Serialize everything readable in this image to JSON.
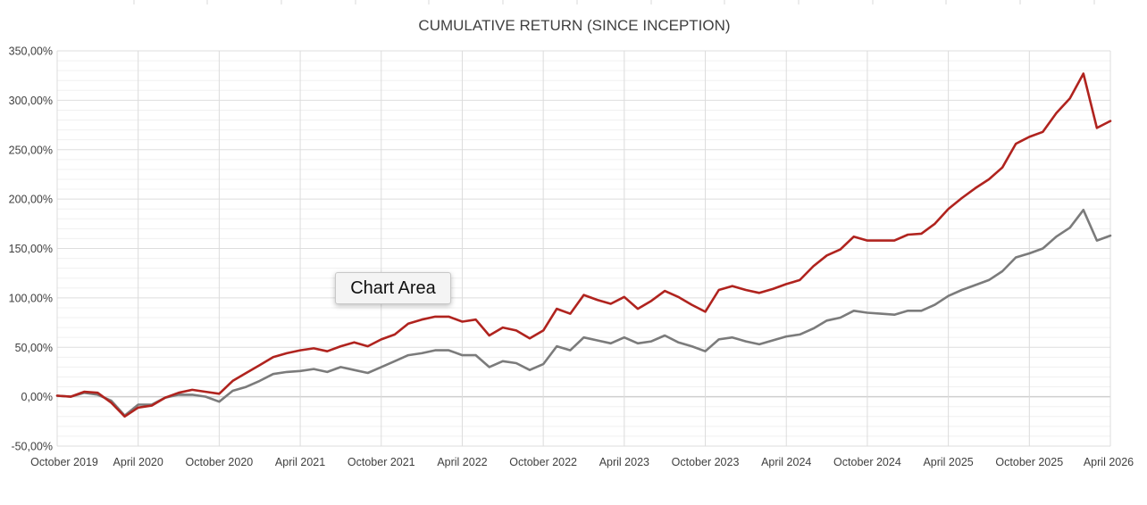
{
  "chart_data": {
    "type": "line",
    "title": "CUMULATIVE RETURN (SINCE INCEPTION)",
    "xlabel": "",
    "ylabel": "",
    "ylim": [
      -50,
      350
    ],
    "yticks": [
      -50,
      0,
      50,
      100,
      150,
      200,
      250,
      300,
      350
    ],
    "ytick_labels": [
      "-50,00%",
      "0,00%",
      "50,00%",
      "100,00%",
      "150,00%",
      "200,00%",
      "250,00%",
      "300,00%",
      "350,00%"
    ],
    "x_tick_labels": [
      "October 2019",
      "April 2020",
      "October 2020",
      "April 2021",
      "October 2021",
      "April 2022",
      "October 2022",
      "April 2023",
      "October 2023",
      "April 2024",
      "October 2024",
      "April 2025",
      "October 2025",
      "April 2026"
    ],
    "x_start": "2019-10",
    "grid": true,
    "legend": "none",
    "series": [
      {
        "color": "#b0231e",
        "values": [
          1,
          0,
          5,
          4,
          -6,
          -20,
          -11,
          -9,
          -1,
          4,
          7,
          5,
          3,
          16,
          24,
          32,
          40,
          44,
          47,
          49,
          46,
          51,
          55,
          51,
          58,
          63,
          74,
          78,
          81,
          81,
          76,
          78,
          62,
          70,
          67,
          59,
          67,
          89,
          84,
          103,
          98,
          94,
          101,
          89,
          97,
          107,
          101,
          93,
          86,
          108,
          112,
          108,
          105,
          109,
          114,
          118,
          132,
          143,
          149,
          162,
          158,
          158,
          158,
          164,
          165,
          175,
          190,
          201,
          211,
          220,
          232,
          256,
          263,
          268,
          287,
          302,
          327,
          272,
          279
        ]
      },
      {
        "color": "#7b7b7b",
        "values": [
          1,
          0,
          4,
          2,
          -4,
          -19,
          -8,
          -8,
          -1,
          2,
          2,
          0,
          -5,
          6,
          10,
          16,
          23,
          25,
          26,
          28,
          25,
          30,
          27,
          24,
          30,
          36,
          42,
          44,
          47,
          47,
          42,
          42,
          30,
          36,
          34,
          27,
          33,
          51,
          47,
          60,
          57,
          54,
          60,
          54,
          56,
          62,
          55,
          51,
          46,
          58,
          60,
          56,
          53,
          57,
          61,
          63,
          69,
          77,
          80,
          87,
          85,
          84,
          83,
          87,
          87,
          93,
          102,
          108,
          113,
          118,
          127,
          141,
          145,
          150,
          162,
          171,
          189,
          158,
          163
        ]
      }
    ]
  },
  "tooltip": {
    "label": "Chart Area"
  }
}
